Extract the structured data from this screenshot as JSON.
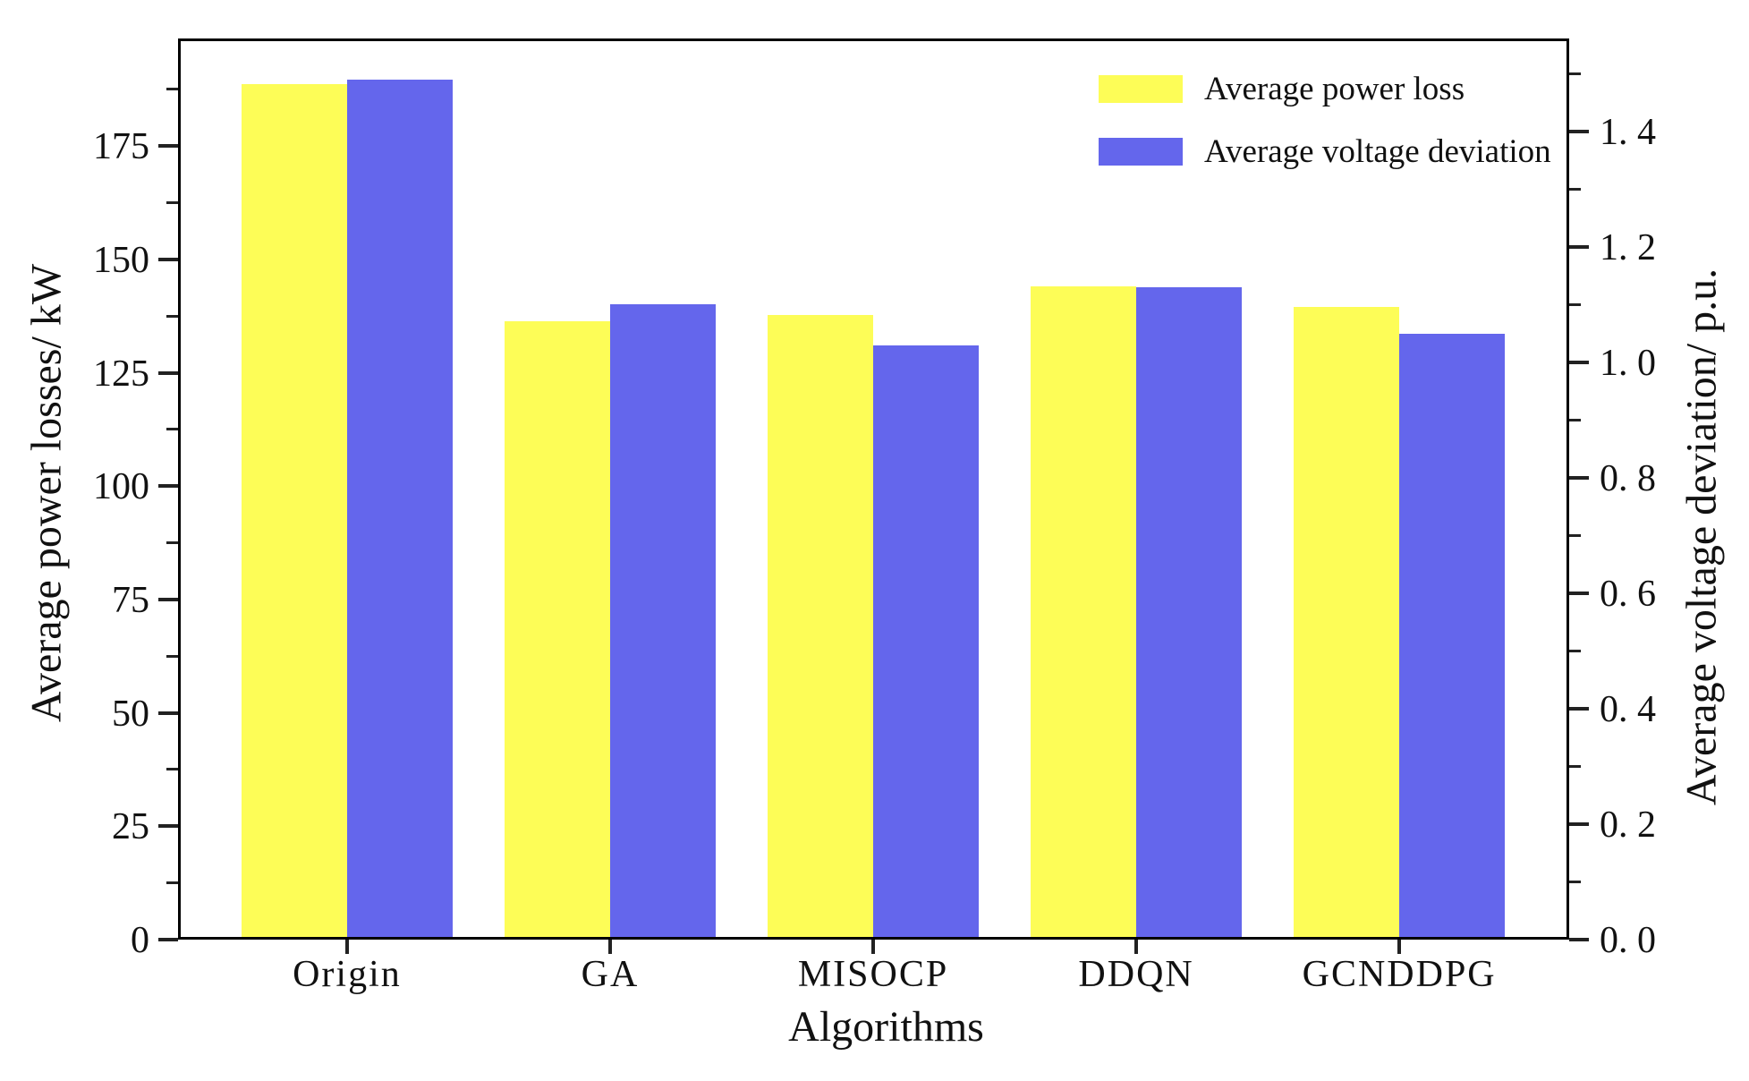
{
  "chart_data": {
    "type": "bar",
    "categories": [
      "Origin",
      "GA",
      "MISOCP",
      "DDQN",
      "GCNDDPG"
    ],
    "series": [
      {
        "name": "Average power loss",
        "axis": "left",
        "color": "#fdfd57",
        "values": [
          188.6,
          136.4,
          137.8,
          144.0,
          139.5
        ]
      },
      {
        "name": "Average voltage deviation",
        "axis": "right",
        "color": "#6466ec",
        "values": [
          1.49,
          1.1,
          1.03,
          1.13,
          1.05
        ]
      }
    ],
    "xlabel": "Algorithms",
    "ylabel_left": "Average power losses/ kW",
    "ylabel_right": "Average voltage deviation/ p.u.",
    "left_axis": {
      "ticks": [
        0,
        25,
        50,
        75,
        100,
        125,
        150,
        175
      ],
      "minor_step": 12.5,
      "range": [
        0,
        198.7
      ]
    },
    "right_axis": {
      "ticks": [
        0.0,
        0.2,
        0.4,
        0.6,
        0.8,
        1.0,
        1.2,
        1.4
      ],
      "tick_labels": [
        "0. 0",
        "0. 2",
        "0. 4",
        "0. 6",
        "0. 8",
        "1. 0",
        "1. 2",
        "1. 4"
      ],
      "minor_step": 0.1,
      "range": [
        0,
        1.561
      ]
    },
    "legend_position": "upper right",
    "grid": false
  }
}
